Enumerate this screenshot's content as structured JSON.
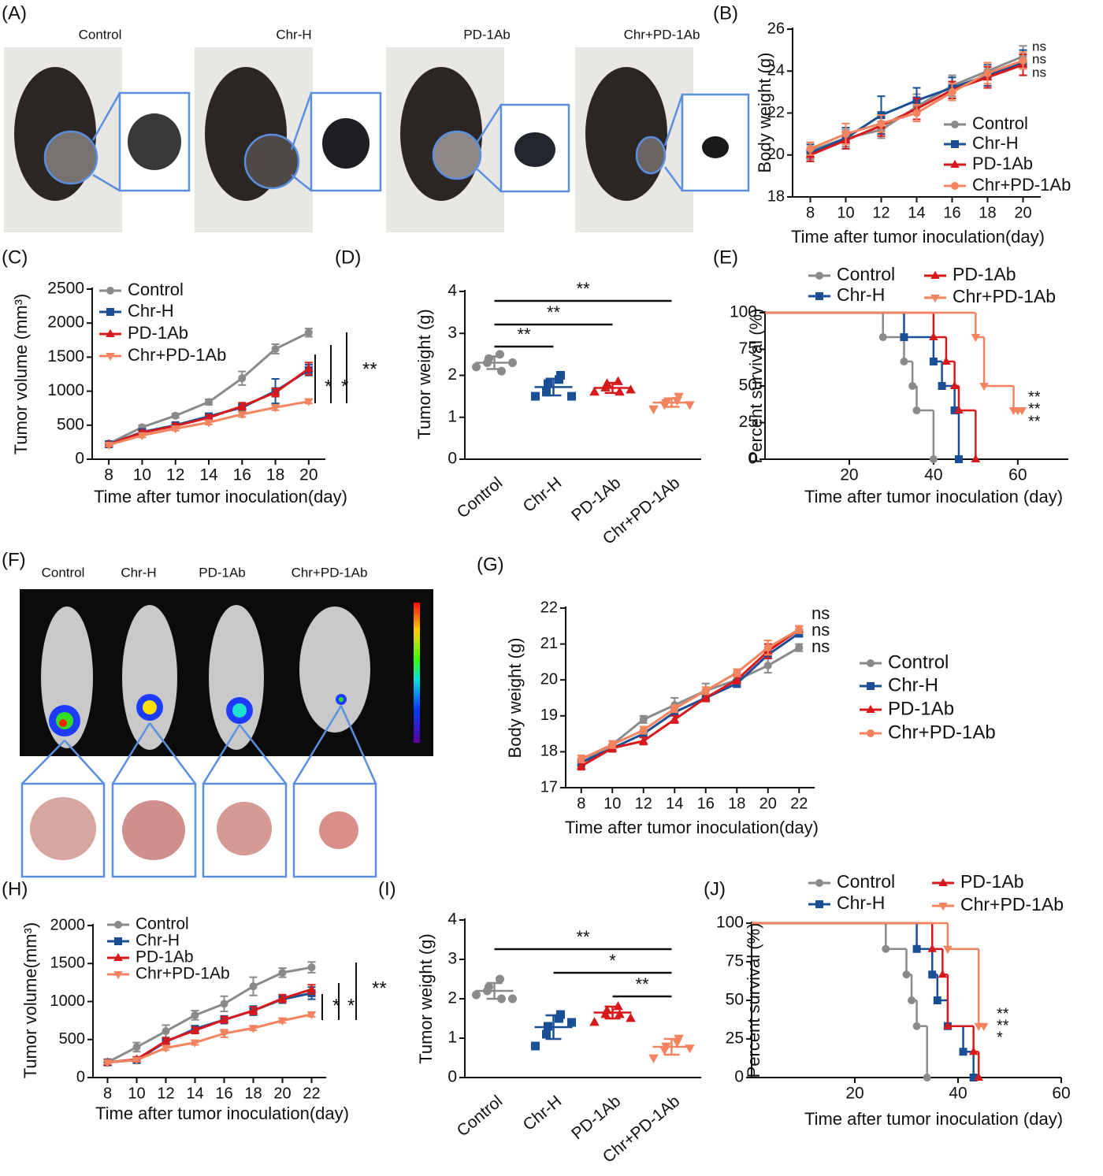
{
  "photo_panels": [
    {
      "label": "(A)",
      "groups": [
        "Control",
        "Chr-H",
        "PD-1Ab",
        "Chr+PD-1Ab"
      ]
    },
    {
      "label": "(F)",
      "groups": [
        "Control",
        "Chr-H",
        "PD-1Ab",
        "Chr+PD-1Ab"
      ]
    }
  ],
  "chart_data": [
    {
      "label": "(B)",
      "type": "line",
      "xlabel": "Time after tumor inoculation(day)",
      "ylabel": "Body weight (g)",
      "x": [
        8,
        10,
        12,
        14,
        16,
        18,
        20
      ],
      "xlim": [
        7,
        21
      ],
      "xticks": [
        8,
        10,
        12,
        14,
        16,
        18,
        20
      ],
      "ylim": [
        18,
        26
      ],
      "yticks": [
        18,
        20,
        22,
        24,
        26
      ],
      "series": [
        {
          "name": "Control",
          "color": "#8a8a8a",
          "marker": "circle",
          "values": [
            20.2,
            20.8,
            21.2,
            22.3,
            23.3,
            24.0,
            24.7
          ],
          "errors": [
            0.4,
            0.4,
            0.4,
            0.6,
            0.5,
            0.4,
            0.5
          ]
        },
        {
          "name": "Chr-H",
          "color": "#1a4f95",
          "marker": "square",
          "values": [
            20.1,
            20.8,
            21.9,
            22.6,
            23.2,
            23.8,
            24.4
          ],
          "errors": [
            0.4,
            0.5,
            0.9,
            0.6,
            0.5,
            0.5,
            0.6
          ]
        },
        {
          "name": "PD-1Ab",
          "color": "#d7191c",
          "marker": "triangle",
          "values": [
            20.0,
            20.7,
            21.4,
            22.2,
            23.1,
            23.7,
            24.3
          ],
          "errors": [
            0.3,
            0.4,
            0.5,
            0.5,
            0.4,
            0.5,
            0.5
          ]
        },
        {
          "name": "Chr+PD-1Ab",
          "color": "#f4845f",
          "marker": "circle",
          "values": [
            20.3,
            21.0,
            21.5,
            22.0,
            23.0,
            23.9,
            24.5
          ],
          "errors": [
            0.3,
            0.5,
            0.4,
            0.4,
            0.4,
            0.5,
            0.4
          ]
        }
      ],
      "annotations": [
        "ns",
        "ns",
        "ns"
      ]
    },
    {
      "label": "(C)",
      "type": "line",
      "xlabel": "Time after tumor inoculation(day)",
      "ylabel": "Tumor volume (mm³)",
      "x": [
        8,
        10,
        12,
        14,
        16,
        18,
        20
      ],
      "xlim": [
        7,
        21
      ],
      "xticks": [
        8,
        10,
        12,
        14,
        16,
        18,
        20
      ],
      "ylim": [
        0,
        2500
      ],
      "yticks": [
        0,
        500,
        1000,
        1500,
        2000,
        2500
      ],
      "series": [
        {
          "name": "Control",
          "color": "#8a8a8a",
          "marker": "circle",
          "values": [
            230,
            470,
            640,
            840,
            1190,
            1620,
            1860
          ],
          "errors": [
            20,
            30,
            30,
            40,
            100,
            70,
            60
          ]
        },
        {
          "name": "Chr-H",
          "color": "#1a4f95",
          "marker": "square",
          "values": [
            220,
            400,
            500,
            630,
            760,
            1000,
            1310
          ],
          "errors": [
            20,
            30,
            30,
            40,
            50,
            180,
            80
          ]
        },
        {
          "name": "PD-1Ab",
          "color": "#d7191c",
          "marker": "triangle",
          "values": [
            220,
            390,
            490,
            610,
            780,
            980,
            1330
          ],
          "errors": [
            20,
            30,
            30,
            40,
            50,
            60,
            90
          ]
        },
        {
          "name": "Chr+PD-1Ab",
          "color": "#f4845f",
          "marker": "triangle-down",
          "values": [
            210,
            350,
            450,
            540,
            660,
            760,
            850
          ],
          "errors": [
            20,
            30,
            30,
            30,
            40,
            40,
            30
          ]
        }
      ],
      "annotations": [
        "*",
        "*",
        "**"
      ]
    },
    {
      "label": "(D)",
      "type": "dotplot",
      "ylabel": "Tumor weight (g)",
      "categories": [
        "Control",
        "Chr-H",
        "PD-1Ab",
        "Chr+PD-1Ab"
      ],
      "colors": [
        "#8a8a8a",
        "#1a4f95",
        "#d7191c",
        "#f4845f"
      ],
      "markers": [
        "circle",
        "square",
        "triangle",
        "triangle-down"
      ],
      "points": [
        [
          2.2,
          2.3,
          2.4,
          2.5,
          2.1,
          2.3
        ],
        [
          1.5,
          1.6,
          1.8,
          1.9,
          2.0,
          1.5
        ],
        [
          1.6,
          1.7,
          1.8,
          1.85,
          1.6,
          1.65
        ],
        [
          1.2,
          1.3,
          1.35,
          1.4,
          1.5,
          1.3
        ]
      ],
      "means": [
        2.3,
        1.72,
        1.7,
        1.35
      ],
      "sds": [
        0.15,
        0.2,
        0.12,
        0.1
      ],
      "ylim": [
        0,
        4
      ],
      "yticks": [
        0,
        1,
        2,
        3,
        4
      ],
      "comparisons": [
        {
          "from": 0,
          "to": 1,
          "label": "**"
        },
        {
          "from": 0,
          "to": 2,
          "label": "**"
        },
        {
          "from": 0,
          "to": 3,
          "label": "**"
        }
      ]
    },
    {
      "label": "(E)",
      "type": "survival",
      "xlabel": "Time after tumor inoculation (day)",
      "ylabel": "Percent survival (%)",
      "xlim": [
        0,
        72
      ],
      "xticks": [
        20,
        40,
        60
      ],
      "ylim": [
        0,
        100
      ],
      "yticks": [
        0,
        25,
        50,
        75,
        100
      ],
      "series": [
        {
          "name": "Control",
          "color": "#8a8a8a",
          "marker": "circle",
          "x": [
            0,
            28,
            33,
            35,
            36,
            40
          ],
          "values": [
            100,
            83.3,
            66.7,
            50,
            33.3,
            0
          ]
        },
        {
          "name": "Chr-H",
          "color": "#1a4f95",
          "marker": "square",
          "x": [
            0,
            33,
            40,
            42,
            45,
            46
          ],
          "values": [
            100,
            83.3,
            66.7,
            50,
            33.3,
            0
          ]
        },
        {
          "name": "PD-1Ab",
          "color": "#d7191c",
          "marker": "triangle",
          "x": [
            0,
            40,
            43,
            45,
            46,
            50
          ],
          "values": [
            100,
            83.3,
            66.7,
            50,
            33.3,
            0
          ]
        },
        {
          "name": "Chr+PD-1Ab",
          "color": "#f4845f",
          "marker": "triangle-down",
          "x": [
            0,
            50,
            52,
            59
          ],
          "values": [
            100,
            83.3,
            50,
            33.3
          ],
          "censor_x": [
            60,
            61
          ]
        }
      ],
      "annotations": [
        "**",
        "**",
        "**"
      ]
    },
    {
      "label": "(G)",
      "type": "line",
      "xlabel": "Time after tumor inoculation(day)",
      "ylabel": "Body weight (g)",
      "x": [
        8,
        10,
        12,
        14,
        16,
        18,
        20,
        22
      ],
      "xlim": [
        7,
        23
      ],
      "xticks": [
        8,
        10,
        12,
        14,
        16,
        18,
        20,
        22
      ],
      "ylim": [
        17,
        22
      ],
      "yticks": [
        17,
        18,
        19,
        20,
        21,
        22
      ],
      "series": [
        {
          "name": "Control",
          "color": "#8a8a8a",
          "marker": "circle",
          "values": [
            17.7,
            18.2,
            18.9,
            19.3,
            19.7,
            20.0,
            20.4,
            20.9
          ],
          "errors": [
            0.1,
            0.1,
            0.1,
            0.2,
            0.2,
            0.2,
            0.2,
            0.1
          ]
        },
        {
          "name": "Chr-H",
          "color": "#1a4f95",
          "marker": "square",
          "values": [
            17.7,
            18.1,
            18.5,
            19.1,
            19.5,
            19.9,
            20.7,
            21.3
          ],
          "errors": [
            0.1,
            0.1,
            0.1,
            0.1,
            0.1,
            0.1,
            0.1,
            0.1
          ]
        },
        {
          "name": "PD-1Ab",
          "color": "#d7191c",
          "marker": "triangle",
          "values": [
            17.6,
            18.1,
            18.3,
            18.9,
            19.5,
            20.0,
            20.8,
            21.4
          ],
          "errors": [
            0.1,
            0.1,
            0.1,
            0.1,
            0.1,
            0.1,
            0.2,
            0.1
          ]
        },
        {
          "name": "Chr+PD-1Ab",
          "color": "#f4845f",
          "marker": "circle",
          "values": [
            17.8,
            18.2,
            18.6,
            19.2,
            19.7,
            20.2,
            20.9,
            21.4
          ],
          "errors": [
            0.1,
            0.1,
            0.1,
            0.1,
            0.1,
            0.1,
            0.2,
            0.1
          ]
        }
      ],
      "annotations": [
        "ns",
        "ns",
        "ns"
      ]
    },
    {
      "label": "(H)",
      "type": "line",
      "xlabel": "Time after tumor inoculation(day)",
      "ylabel": "Tumor volume(mm³)",
      "x": [
        8,
        10,
        12,
        14,
        16,
        18,
        20,
        22
      ],
      "xlim": [
        7,
        23
      ],
      "xticks": [
        8,
        10,
        12,
        14,
        16,
        18,
        20,
        22
      ],
      "ylim": [
        0,
        2000
      ],
      "yticks": [
        0,
        500,
        1000,
        1500,
        2000
      ],
      "series": [
        {
          "name": "Control",
          "color": "#8a8a8a",
          "marker": "circle",
          "values": [
            200,
            400,
            610,
            820,
            970,
            1200,
            1380,
            1450
          ],
          "errors": [
            20,
            60,
            80,
            60,
            100,
            120,
            60,
            70
          ]
        },
        {
          "name": "Chr-H",
          "color": "#1a4f95",
          "marker": "square",
          "values": [
            200,
            230,
            470,
            640,
            760,
            880,
            1030,
            1110
          ],
          "errors": [
            20,
            30,
            40,
            40,
            50,
            60,
            50,
            80
          ]
        },
        {
          "name": "PD-1Ab",
          "color": "#d7191c",
          "marker": "triangle",
          "values": [
            200,
            240,
            480,
            620,
            760,
            880,
            1040,
            1160
          ],
          "errors": [
            20,
            30,
            40,
            40,
            40,
            50,
            50,
            60
          ]
        },
        {
          "name": "Chr+PD-1Ab",
          "color": "#f4845f",
          "marker": "triangle-down",
          "values": [
            200,
            230,
            390,
            460,
            580,
            650,
            750,
            830
          ],
          "errors": [
            20,
            20,
            30,
            30,
            50,
            30,
            30,
            30
          ]
        }
      ],
      "annotations": [
        "*",
        "*",
        "**"
      ]
    },
    {
      "label": "(I)",
      "type": "dotplot",
      "ylabel": "Tumor weight (g)",
      "categories": [
        "Control",
        "Chr-H",
        "PD-1Ab",
        "Chr+PD-1Ab"
      ],
      "colors": [
        "#8a8a8a",
        "#1a4f95",
        "#d7191c",
        "#f4845f"
      ],
      "markers": [
        "circle",
        "square",
        "triangle",
        "triangle-down"
      ],
      "points": [
        [
          2.1,
          2.2,
          2.3,
          2.5,
          2.0,
          2.0
        ],
        [
          0.8,
          1.1,
          1.3,
          1.5,
          1.6,
          1.4
        ],
        [
          1.4,
          1.6,
          1.7,
          1.8,
          1.6,
          1.5
        ],
        [
          0.5,
          0.7,
          0.8,
          0.9,
          1.0,
          0.75
        ]
      ],
      "means": [
        2.2,
        1.28,
        1.65,
        0.78
      ],
      "sds": [
        0.2,
        0.3,
        0.15,
        0.2
      ],
      "ylim": [
        0,
        4
      ],
      "yticks": [
        0,
        1,
        2,
        3,
        4
      ],
      "comparisons": [
        {
          "from": 0,
          "to": 3,
          "label": "**"
        },
        {
          "from": 1,
          "to": 3,
          "label": "*"
        },
        {
          "from": 2,
          "to": 3,
          "label": "**"
        }
      ]
    },
    {
      "label": "(J)",
      "type": "survival",
      "xlabel": "Time after tumor inoculation (day)",
      "ylabel": "Percent survival (%)",
      "xlim": [
        0,
        60
      ],
      "xticks": [
        20,
        40,
        60
      ],
      "ylim": [
        0,
        100
      ],
      "yticks": [
        0,
        25,
        50,
        75,
        100
      ],
      "series": [
        {
          "name": "Control",
          "color": "#8a8a8a",
          "marker": "circle",
          "x": [
            0,
            26,
            30,
            31,
            32,
            34
          ],
          "values": [
            100,
            83.3,
            66.7,
            50,
            33.3,
            0
          ]
        },
        {
          "name": "Chr-H",
          "color": "#1a4f95",
          "marker": "square",
          "x": [
            0,
            32,
            35,
            36,
            38,
            41,
            43
          ],
          "values": [
            100,
            83.3,
            66.7,
            50,
            33.3,
            16.7,
            0
          ]
        },
        {
          "name": "PD-1Ab",
          "color": "#d7191c",
          "marker": "triangle",
          "x": [
            0,
            35,
            37,
            38,
            43,
            44
          ],
          "values": [
            100,
            83.3,
            66.7,
            33.3,
            16.7,
            0
          ]
        },
        {
          "name": "Chr+PD-1Ab",
          "color": "#f4845f",
          "marker": "triangle-down",
          "x": [
            0,
            38,
            44
          ],
          "values": [
            100,
            83.3,
            33.3
          ],
          "censor_x": [
            45
          ]
        }
      ],
      "annotations": [
        "**",
        "**",
        "*"
      ]
    }
  ]
}
